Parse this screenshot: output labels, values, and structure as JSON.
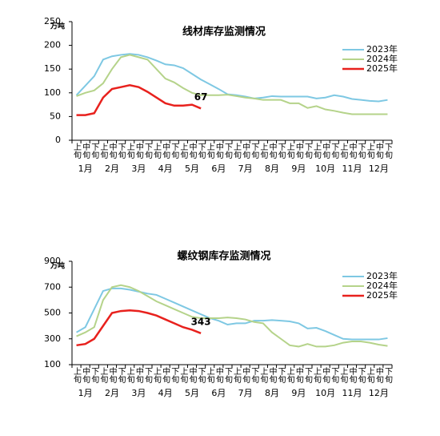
{
  "chart_data": [
    {
      "type": "line",
      "title": "线材库存监测情况",
      "unit": "万吨",
      "categories": [
        "上旬",
        "中旬",
        "下旬",
        "上旬",
        "中旬",
        "下旬",
        "上旬",
        "中旬",
        "下旬",
        "上旬",
        "中旬",
        "下旬",
        "上旬",
        "中旬",
        "下旬",
        "上旬",
        "中旬",
        "下旬",
        "上旬",
        "中旬",
        "下旬",
        "上旬",
        "中旬",
        "下旬",
        "上旬",
        "中旬",
        "下旬",
        "上旬",
        "中旬",
        "下旬",
        "上旬",
        "中旬",
        "下旬",
        "上旬",
        "中旬",
        "下旬"
      ],
      "months": [
        "1月",
        "2月",
        "3月",
        "4月",
        "5月",
        "6月",
        "7月",
        "8月",
        "9月",
        "10月",
        "11月",
        "12月"
      ],
      "ylim": [
        0,
        250
      ],
      "yticks": [
        0,
        50,
        100,
        150,
        200,
        250
      ],
      "series": [
        {
          "name": "2023年",
          "color": "#7ec8e3",
          "width": 2,
          "values": [
            95,
            115,
            135,
            170,
            177,
            180,
            182,
            180,
            175,
            168,
            160,
            158,
            152,
            140,
            128,
            118,
            108,
            97,
            95,
            92,
            88,
            90,
            93,
            92,
            92,
            92,
            92,
            88,
            90,
            95,
            92,
            87,
            85,
            83,
            82,
            85
          ]
        },
        {
          "name": "2024年",
          "color": "#b5d38a",
          "width": 2,
          "values": [
            93,
            100,
            105,
            120,
            150,
            175,
            180,
            175,
            170,
            150,
            130,
            122,
            110,
            100,
            95,
            95,
            95,
            96,
            93,
            90,
            88,
            85,
            85,
            85,
            78,
            78,
            68,
            72,
            65,
            62,
            58,
            55,
            55,
            55,
            55,
            55
          ]
        },
        {
          "name": "2025年",
          "color": "#e8211d",
          "width": 2.5,
          "values": [
            53,
            53,
            57,
            90,
            108,
            112,
            116,
            112,
            102,
            90,
            78,
            73,
            73,
            75,
            67,
            null,
            null,
            null,
            null,
            null,
            null,
            null,
            null,
            null,
            null,
            null,
            null,
            null,
            null,
            null,
            null,
            null,
            null,
            null,
            null,
            null
          ],
          "value_labels": [
            null,
            null,
            null,
            null,
            null,
            null,
            null,
            null,
            null,
            null,
            null,
            null,
            null,
            null,
            "67",
            null,
            null,
            null,
            null,
            null,
            null,
            null,
            null,
            null,
            null,
            null,
            null,
            null,
            null,
            null,
            null,
            null,
            null,
            null,
            null,
            null
          ]
        }
      ]
    },
    {
      "type": "line",
      "title": "螺纹钢库存监测情况",
      "unit": "万吨",
      "categories": [
        "上旬",
        "中旬",
        "下旬",
        "上旬",
        "中旬",
        "下旬",
        "上旬",
        "中旬",
        "下旬",
        "上旬",
        "中旬",
        "下旬",
        "上旬",
        "中旬",
        "下旬",
        "上旬",
        "中旬",
        "下旬",
        "上旬",
        "中旬",
        "下旬",
        "上旬",
        "中旬",
        "下旬",
        "上旬",
        "中旬",
        "下旬",
        "上旬",
        "中旬",
        "下旬",
        "上旬",
        "中旬",
        "下旬",
        "上旬",
        "中旬",
        "下旬"
      ],
      "months": [
        "1月",
        "2月",
        "3月",
        "4月",
        "5月",
        "6月",
        "7月",
        "8月",
        "9月",
        "10月",
        "11月",
        "12月"
      ],
      "ylim": [
        100,
        900
      ],
      "yticks": [
        100,
        300,
        500,
        700,
        900
      ],
      "series": [
        {
          "name": "2023年",
          "color": "#7ec8e3",
          "width": 2,
          "values": [
            350,
            390,
            530,
            670,
            690,
            690,
            680,
            665,
            650,
            640,
            610,
            580,
            550,
            520,
            490,
            460,
            440,
            410,
            420,
            420,
            440,
            440,
            445,
            440,
            435,
            420,
            380,
            385,
            360,
            330,
            300,
            295,
            295,
            295,
            295,
            305
          ]
        },
        {
          "name": "2024年",
          "color": "#b5d38a",
          "width": 2,
          "values": [
            320,
            350,
            390,
            600,
            700,
            715,
            700,
            670,
            630,
            590,
            560,
            530,
            500,
            470,
            460,
            460,
            460,
            465,
            460,
            450,
            430,
            420,
            350,
            300,
            250,
            240,
            260,
            240,
            240,
            250,
            270,
            280,
            280,
            270,
            255,
            245
          ]
        },
        {
          "name": "2025年",
          "color": "#e8211d",
          "width": 2.5,
          "values": [
            250,
            260,
            300,
            400,
            500,
            515,
            520,
            515,
            500,
            480,
            450,
            420,
            390,
            370,
            343,
            null,
            null,
            null,
            null,
            null,
            null,
            null,
            null,
            null,
            null,
            null,
            null,
            null,
            null,
            null,
            null,
            null,
            null,
            null,
            null,
            null
          ],
          "value_labels": [
            null,
            null,
            null,
            null,
            null,
            null,
            null,
            null,
            null,
            null,
            null,
            null,
            null,
            null,
            "343",
            null,
            null,
            null,
            null,
            null,
            null,
            null,
            null,
            null,
            null,
            null,
            null,
            null,
            null,
            null,
            null,
            null,
            null,
            null,
            null,
            null
          ]
        }
      ]
    }
  ]
}
